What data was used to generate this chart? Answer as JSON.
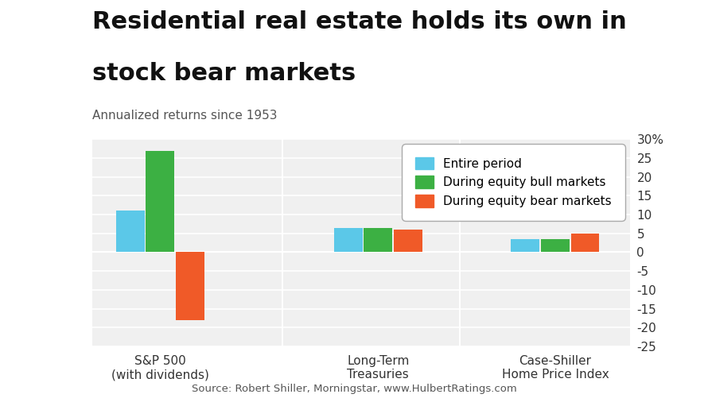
{
  "title_line1": "Residential real estate holds its own in",
  "title_line2": "stock bear markets",
  "subtitle": "Annualized returns since 1953",
  "source": "Source: Robert Shiller, Morningstar, www.HulbertRatings.com",
  "categories": [
    "S&P 500\n(with dividends)",
    "Long-Term\nTreasuries",
    "Case-Shiller\nHome Price Index"
  ],
  "series": {
    "Entire period": [
      11.0,
      6.5,
      3.5
    ],
    "During equity bull markets": [
      27.0,
      6.5,
      3.5
    ],
    "During equity bear markets": [
      -18.0,
      6.0,
      5.0
    ]
  },
  "colors": {
    "Entire period": "#5BC8E8",
    "During equity bull markets": "#3CB043",
    "During equity bear markets": "#F05A28"
  },
  "ylim": [
    -25,
    30
  ],
  "yticks": [
    -25,
    -20,
    -15,
    -10,
    -5,
    0,
    5,
    10,
    15,
    20,
    25,
    30
  ],
  "ytick_labels": [
    "-25",
    "-20",
    "-15",
    "-10",
    "-5",
    "0",
    "5",
    "10",
    "15",
    "20",
    "25",
    "30%"
  ],
  "background_color": "#ffffff",
  "plot_bg_color": "#f0f0f0",
  "bar_width": 0.22,
  "title_fontsize": 22,
  "subtitle_fontsize": 11,
  "legend_fontsize": 11,
  "tick_fontsize": 11,
  "xtick_fontsize": 11,
  "source_fontsize": 9.5
}
